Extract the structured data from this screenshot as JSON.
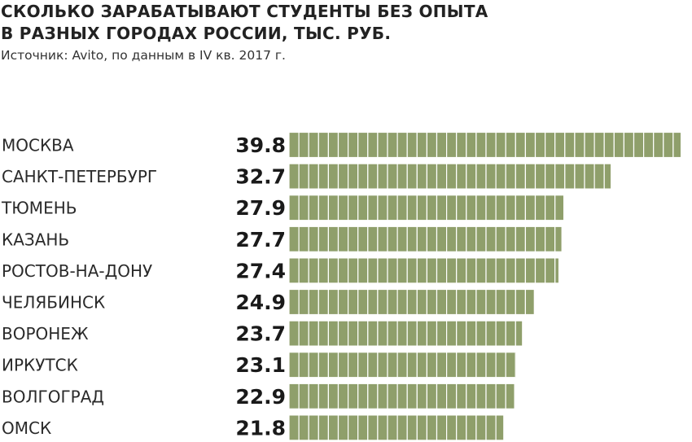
{
  "header": {
    "title_line1": "СКОЛЬКО ЗАРАБАТЫВАЮТ СТУДЕНТЫ БЕЗ ОПЫТА",
    "title_line2": "В РАЗНЫХ ГОРОДАХ РОССИИ, ТЫС. РУБ.",
    "source": "Источник: Avito, по данным в IV кв. 2017 г."
  },
  "colors": {
    "bar": "#8f9f6b",
    "bar_divider": "#ffffff",
    "text": "#1a1a1a"
  },
  "chart_data": {
    "type": "bar",
    "orientation": "horizontal",
    "title": "СКОЛЬКО ЗАРАБАТЫВАЮТ СТУДЕНТЫ БЕЗ ОПЫТА В РАЗНЫХ ГОРОДАХ РОССИИ, ТЫС. РУБ.",
    "categories": [
      "МОСКВА",
      "САНКТ-ПЕТЕРБУРГ",
      "ТЮМЕНЬ",
      "КАЗАНЬ",
      "РОСТОВ-НА-ДОНУ",
      "ЧЕЛЯБИНСК",
      "ВОРОНЕЖ",
      "ИРКУТСК",
      "ВОЛГОГРАД",
      "ОМСК"
    ],
    "values": [
      39.8,
      32.7,
      27.9,
      27.7,
      27.4,
      24.9,
      23.7,
      23.1,
      22.9,
      21.8
    ],
    "value_labels": [
      "39.8",
      "32.7",
      "27.9",
      "27.7",
      "27.4",
      "24.9",
      "23.7",
      "23.1",
      "22.9",
      "21.8"
    ],
    "xlim": [
      0,
      40
    ],
    "bar_segment_unit": 1,
    "grid": false,
    "legend": "none"
  }
}
